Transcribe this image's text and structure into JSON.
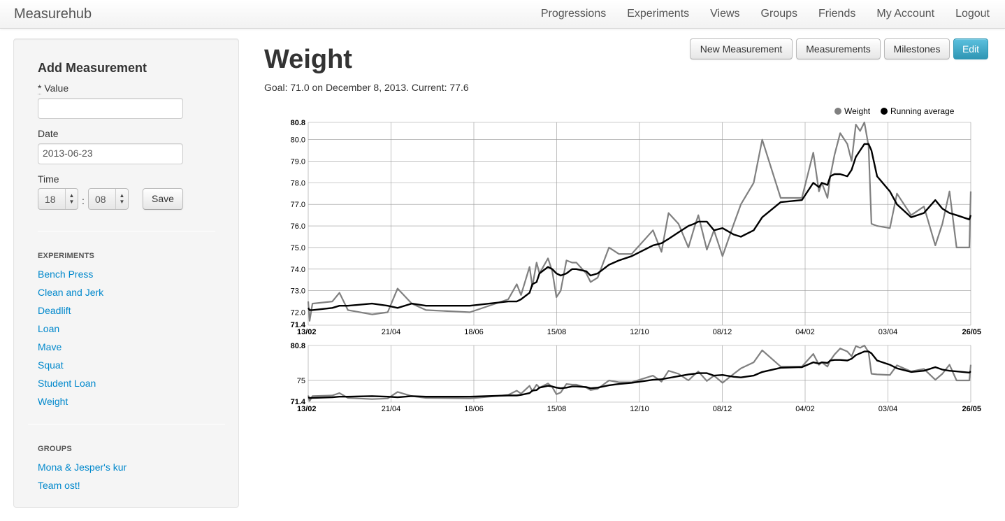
{
  "app": {
    "brand": "Measurehub"
  },
  "nav": [
    "Progressions",
    "Experiments",
    "Views",
    "Groups",
    "Friends",
    "My Account",
    "Logout"
  ],
  "sidebar": {
    "title": "Add Measurement",
    "value_label_req": "*",
    "value_label": " Value",
    "value": "",
    "date_label": "Date",
    "date_value": "2013-06-23",
    "time_label": "Time",
    "hour": "18",
    "minute": "08",
    "colon": ":",
    "save": "Save",
    "experiments_heading": "EXPERIMENTS",
    "experiments": [
      "Bench Press",
      "Clean and Jerk",
      "Deadlift",
      "Loan",
      "Mave",
      "Squat",
      "Student Loan",
      "Weight"
    ],
    "groups_heading": "GROUPS",
    "groups": [
      "Mona & Jesper's kur",
      "Team ost!"
    ]
  },
  "main": {
    "title": "Weight",
    "goal": "Goal: 71.0 on December 8, 2013. Current: 77.6",
    "buttons": [
      "New Measurement",
      "Measurements",
      "Milestones",
      "Edit"
    ]
  },
  "colors": {
    "weight": "#808080",
    "running_average": "#000000",
    "link": "#0088cc",
    "primary": "#2f96b4"
  },
  "chart_data": {
    "type": "line",
    "legend": [
      "Weight",
      "Running average"
    ],
    "legend_position": "top-right",
    "grid": true,
    "x_ticks": [
      "13/02",
      "21/04",
      "18/06",
      "15/08",
      "12/10",
      "08/12",
      "04/02",
      "03/04",
      "26/05"
    ],
    "main": {
      "ylim": [
        71.4,
        80.8
      ],
      "y_ticks": [
        "80.8",
        "80.0",
        "79.0",
        "78.0",
        "77.0",
        "76.0",
        "75.0",
        "74.0",
        "73.0",
        "72.0",
        "71.4"
      ]
    },
    "overview": {
      "ylim": [
        71.4,
        80.8
      ],
      "y_ticks": [
        "80.8",
        "75",
        "71.4"
      ]
    },
    "x": [
      0,
      1,
      3,
      17,
      22,
      28,
      45,
      56,
      63,
      73,
      83,
      114,
      141,
      147,
      150,
      156,
      158,
      161,
      163,
      169,
      172,
      175,
      178,
      182,
      186,
      189,
      196,
      199,
      204,
      212,
      219,
      228,
      243,
      249,
      254,
      261,
      268,
      272,
      275,
      281,
      286,
      292,
      300,
      305,
      314,
      320,
      333,
      348,
      356,
      360,
      362,
      366,
      368,
      371,
      375,
      380,
      383,
      386,
      389,
      392,
      395,
      397,
      401,
      410,
      415,
      425,
      434,
      442,
      447,
      452,
      457,
      466,
      467
    ],
    "series": [
      {
        "name": "Weight",
        "values": [
          72.5,
          71.6,
          72.4,
          72.5,
          72.9,
          72.1,
          71.9,
          72.0,
          73.1,
          72.4,
          72.1,
          72.0,
          72.6,
          73.3,
          72.8,
          74.1,
          73.2,
          74.3,
          73.8,
          74.5,
          73.9,
          72.7,
          73.0,
          74.4,
          74.3,
          74.3,
          73.8,
          73.4,
          73.6,
          75.0,
          74.7,
          74.7,
          75.8,
          74.8,
          76.6,
          76.1,
          75.0,
          75.9,
          76.5,
          74.9,
          75.8,
          74.6,
          76.1,
          77.0,
          78.0,
          80.0,
          77.3,
          77.3,
          79.4,
          77.6,
          78.0,
          77.3,
          78.3,
          79.3,
          80.3,
          79.8,
          79.0,
          80.7,
          80.4,
          80.8,
          79.7,
          76.1,
          76.0,
          75.9,
          77.5,
          76.5,
          76.9,
          75.1,
          76.1,
          77.6,
          75.0,
          75.0,
          77.6
        ]
      },
      {
        "name": "Running average",
        "values": [
          72.2,
          72.1,
          72.1,
          72.2,
          72.3,
          72.3,
          72.4,
          72.3,
          72.2,
          72.4,
          72.3,
          72.3,
          72.5,
          72.5,
          72.6,
          72.9,
          73.3,
          73.4,
          73.8,
          74.1,
          74.0,
          73.8,
          73.7,
          73.8,
          74.0,
          74.0,
          73.9,
          73.7,
          73.8,
          74.2,
          74.4,
          74.6,
          75.1,
          75.2,
          75.4,
          75.7,
          76.0,
          76.1,
          76.2,
          76.2,
          75.8,
          75.9,
          75.6,
          75.5,
          75.8,
          76.4,
          77.1,
          77.2,
          78.0,
          77.8,
          78.0,
          77.9,
          78.3,
          78.4,
          78.4,
          78.3,
          78.6,
          79.2,
          79.5,
          79.8,
          79.8,
          79.5,
          78.3,
          77.6,
          77.0,
          76.4,
          76.6,
          77.2,
          76.8,
          76.6,
          76.5,
          76.3,
          76.5
        ]
      }
    ]
  }
}
